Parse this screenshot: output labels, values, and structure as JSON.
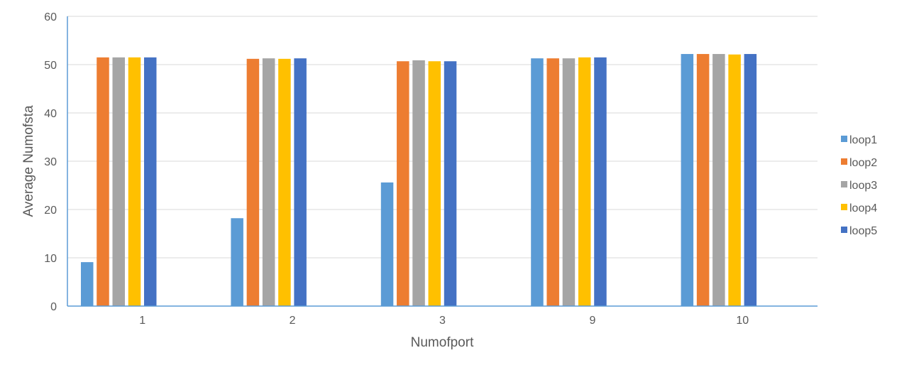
{
  "chart_data": {
    "type": "bar",
    "xlabel": "Numofport",
    "ylabel": "Average Numofsta",
    "categories": [
      "1",
      "2",
      "3",
      "9",
      "10"
    ],
    "ylim": [
      0,
      60
    ],
    "yticks": [
      0,
      10,
      20,
      30,
      40,
      50,
      60
    ],
    "grid": true,
    "legend": "right",
    "series": [
      {
        "name": "loop1",
        "color": "#5B9BD5",
        "values": [
          9.1,
          18.2,
          25.6,
          51.3,
          52.2
        ]
      },
      {
        "name": "loop2",
        "color": "#ED7D31",
        "values": [
          51.5,
          51.2,
          50.7,
          51.3,
          52.2
        ]
      },
      {
        "name": "loop3",
        "color": "#A5A5A5",
        "values": [
          51.5,
          51.3,
          50.9,
          51.3,
          52.2
        ]
      },
      {
        "name": "loop4",
        "color": "#FFC000",
        "values": [
          51.5,
          51.2,
          50.7,
          51.5,
          52.1
        ]
      },
      {
        "name": "loop5",
        "color": "#4472C4",
        "values": [
          51.5,
          51.3,
          50.7,
          51.5,
          52.2
        ]
      }
    ],
    "axis_color": "#5B9BD5",
    "grid_color": "#D9D9D9",
    "text_color": "#595959"
  }
}
